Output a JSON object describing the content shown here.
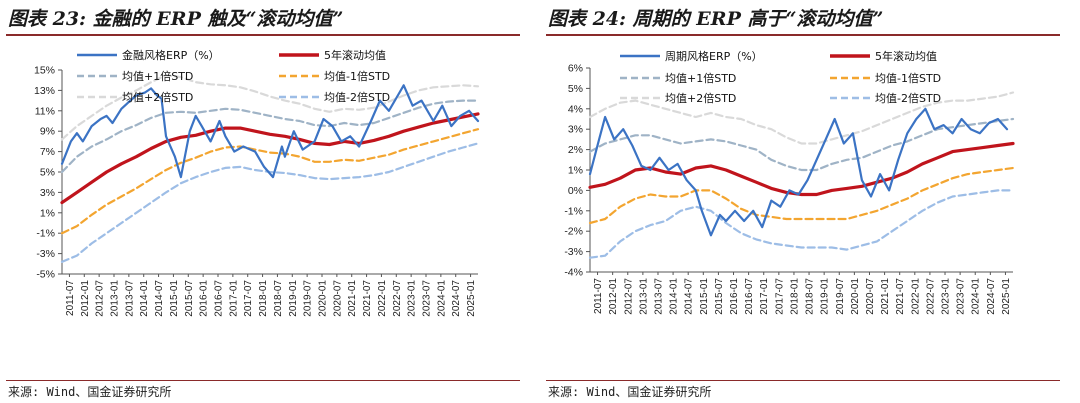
{
  "charts": [
    {
      "title": "图表 23: 金融的 ERP 触及“滚动均值”",
      "source": "来源: Wind、国金证券研究所"
    },
    {
      "title": "图表 24: 周期的 ERP 高于“滚动均值”",
      "source": "来源: Wind、国金证券研究所"
    }
  ],
  "colors": {
    "erp": "#3b73c4",
    "mean": "#c0141c",
    "plus1": "#9fb3c6",
    "minus1": "#f3a530",
    "plus2": "#d9d9d9",
    "minus2": "#9dbde6",
    "title_rule": "#8a2a2a"
  },
  "chart_data": [
    {
      "type": "line",
      "ylim": [
        -5,
        15
      ],
      "yticks": [
        "15%",
        "13%",
        "11%",
        "9%",
        "7%",
        "5%",
        "3%",
        "1%",
        "-1%",
        "-3%",
        "-5%"
      ],
      "x_ticks": [
        "2011-07",
        "2012-01",
        "2012-07",
        "2013-01",
        "2013-07",
        "2014-01",
        "2014-07",
        "2015-01",
        "2015-07",
        "2016-01",
        "2016-07",
        "2017-01",
        "2017-07",
        "2018-01",
        "2018-07",
        "2019-01",
        "2019-07",
        "2020-01",
        "2020-07",
        "2021-01",
        "2021-07",
        "2022-01",
        "2022-07",
        "2023-01",
        "2023-07",
        "2024-01",
        "2024-07",
        "2025-01"
      ],
      "legend": [
        "金融风格ERP（%）",
        "5年滚动均值",
        "均值+1倍STD",
        "均值-1倍STD",
        "均值+2倍STD",
        "均值-2倍STD"
      ],
      "series": [
        {
          "name": "金融风格ERP（%）",
          "key": "erp",
          "x": [
            2011.5,
            2011.8,
            2012.0,
            2012.2,
            2012.5,
            2012.8,
            2013.0,
            2013.2,
            2013.5,
            2013.8,
            2014.0,
            2014.3,
            2014.5,
            2014.7,
            2014.85,
            2015.0,
            2015.3,
            2015.5,
            2015.8,
            2016.0,
            2016.2,
            2016.5,
            2016.8,
            2017.0,
            2017.3,
            2017.6,
            2018.0,
            2018.3,
            2018.6,
            2018.9,
            2019.0,
            2019.3,
            2019.6,
            2020.0,
            2020.3,
            2020.6,
            2020.9,
            2021.2,
            2021.5,
            2021.9,
            2022.2,
            2022.5,
            2022.8,
            2023.0,
            2023.3,
            2023.6,
            2024.0,
            2024.3,
            2024.6,
            2024.9,
            2025.2,
            2025.5
          ],
          "values": [
            5.8,
            8.0,
            8.8,
            8.0,
            9.5,
            10.2,
            10.5,
            9.8,
            11.2,
            12.0,
            12.5,
            12.8,
            13.2,
            12.5,
            12.2,
            8.5,
            6.5,
            4.5,
            9.0,
            10.5,
            9.5,
            8.0,
            10.0,
            8.5,
            7.0,
            7.5,
            7.0,
            5.5,
            4.5,
            7.5,
            6.5,
            9.0,
            7.2,
            8.0,
            10.2,
            9.5,
            8.0,
            8.5,
            7.5,
            10.0,
            12.0,
            11.0,
            12.5,
            13.5,
            11.5,
            12.0,
            10.0,
            11.5,
            9.5,
            10.5,
            11.0,
            10.0
          ]
        },
        {
          "name": "5年滚动均值",
          "key": "mean",
          "x": [
            2011.5,
            2012.0,
            2012.5,
            2013.0,
            2013.5,
            2014.0,
            2014.5,
            2015.0,
            2015.5,
            2016.0,
            2016.5,
            2017.0,
            2017.5,
            2018.0,
            2018.5,
            2019.0,
            2019.5,
            2020.0,
            2020.5,
            2021.0,
            2021.5,
            2022.0,
            2022.5,
            2023.0,
            2023.5,
            2024.0,
            2024.5,
            2025.0,
            2025.5
          ],
          "values": [
            2.0,
            3.0,
            4.0,
            5.0,
            5.8,
            6.5,
            7.3,
            8.0,
            8.4,
            8.6,
            9.0,
            9.3,
            9.3,
            9.0,
            8.7,
            8.5,
            8.2,
            7.8,
            7.7,
            8.0,
            7.8,
            8.1,
            8.5,
            9.0,
            9.4,
            9.8,
            10.1,
            10.4,
            10.7
          ]
        },
        {
          "name": "均值+1倍STD",
          "key": "plus1",
          "x": [
            2011.5,
            2012.0,
            2012.5,
            2013.0,
            2013.5,
            2014.0,
            2014.5,
            2015.0,
            2015.5,
            2016.0,
            2016.5,
            2017.0,
            2017.5,
            2018.0,
            2018.5,
            2019.0,
            2019.5,
            2020.0,
            2020.5,
            2021.0,
            2021.5,
            2022.0,
            2022.5,
            2023.0,
            2023.5,
            2024.0,
            2024.5,
            2025.0,
            2025.5
          ],
          "values": [
            5.0,
            6.5,
            7.5,
            8.2,
            9.0,
            9.6,
            10.3,
            10.8,
            10.9,
            10.8,
            11.0,
            11.2,
            11.1,
            10.8,
            10.5,
            10.2,
            10.0,
            9.6,
            9.5,
            9.8,
            9.6,
            9.8,
            10.3,
            10.8,
            11.3,
            11.7,
            11.9,
            12.0,
            12.0
          ]
        },
        {
          "name": "均值-1倍STD",
          "key": "minus1",
          "x": [
            2011.5,
            2012.0,
            2012.5,
            2013.0,
            2013.5,
            2014.0,
            2014.5,
            2015.0,
            2015.5,
            2016.0,
            2016.5,
            2017.0,
            2017.5,
            2018.0,
            2018.5,
            2019.0,
            2019.5,
            2020.0,
            2020.5,
            2021.0,
            2021.5,
            2022.0,
            2022.5,
            2023.0,
            2023.5,
            2024.0,
            2024.5,
            2025.0,
            2025.5
          ],
          "values": [
            -1.0,
            -0.3,
            0.8,
            1.8,
            2.6,
            3.4,
            4.3,
            5.2,
            5.9,
            6.4,
            7.0,
            7.4,
            7.5,
            7.2,
            6.9,
            6.8,
            6.5,
            6.0,
            6.0,
            6.2,
            6.1,
            6.4,
            6.7,
            7.2,
            7.6,
            8.0,
            8.4,
            8.8,
            9.2
          ]
        },
        {
          "name": "均值+2倍STD",
          "key": "plus2",
          "x": [
            2011.5,
            2012.0,
            2012.5,
            2013.0,
            2013.5,
            2014.0,
            2014.5,
            2015.0,
            2015.5,
            2016.0,
            2016.5,
            2017.0,
            2017.5,
            2018.0,
            2018.5,
            2019.0,
            2019.5,
            2020.0,
            2020.5,
            2021.0,
            2021.5,
            2022.0,
            2022.5,
            2023.0,
            2023.5,
            2024.0,
            2024.5,
            2025.0,
            2025.5
          ],
          "values": [
            8.2,
            9.5,
            10.5,
            11.5,
            12.3,
            13.0,
            13.8,
            14.5,
            14.3,
            13.8,
            13.6,
            13.5,
            13.3,
            12.9,
            12.4,
            12.0,
            11.7,
            11.2,
            10.9,
            11.2,
            11.1,
            11.3,
            11.9,
            12.5,
            13.0,
            13.3,
            13.4,
            13.5,
            13.4
          ]
        },
        {
          "name": "均值-2倍STD",
          "key": "minus2",
          "x": [
            2011.5,
            2012.0,
            2012.5,
            2013.0,
            2013.5,
            2014.0,
            2014.5,
            2015.0,
            2015.5,
            2016.0,
            2016.5,
            2017.0,
            2017.5,
            2018.0,
            2018.5,
            2019.0,
            2019.5,
            2020.0,
            2020.5,
            2021.0,
            2021.5,
            2022.0,
            2022.5,
            2023.0,
            2023.5,
            2024.0,
            2024.5,
            2025.0,
            2025.5
          ],
          "values": [
            -3.8,
            -3.2,
            -2.0,
            -1.0,
            0.0,
            1.0,
            2.0,
            3.0,
            3.9,
            4.5,
            5.0,
            5.4,
            5.5,
            5.2,
            5.0,
            4.9,
            4.7,
            4.4,
            4.3,
            4.4,
            4.5,
            4.7,
            5.0,
            5.5,
            6.0,
            6.5,
            7.0,
            7.4,
            7.8
          ]
        }
      ]
    },
    {
      "type": "line",
      "ylim": [
        -4,
        6
      ],
      "yticks": [
        "6%",
        "5%",
        "4%",
        "3%",
        "2%",
        "1%",
        "0%",
        "-1%",
        "-2%",
        "-3%",
        "-4%"
      ],
      "x_ticks": [
        "2011-07",
        "2012-01",
        "2012-07",
        "2013-01",
        "2013-07",
        "2014-01",
        "2014-07",
        "2015-01",
        "2015-07",
        "2016-01",
        "2016-07",
        "2017-01",
        "2017-07",
        "2018-01",
        "2018-07",
        "2019-01",
        "2019-07",
        "2020-01",
        "2020-07",
        "2021-01",
        "2021-07",
        "2022-01",
        "2022-07",
        "2023-01",
        "2023-07",
        "2024-01",
        "2024-07",
        "2025-01"
      ],
      "legend": [
        "周期风格ERP（%）",
        "5年滚动均值",
        "均值+1倍STD",
        "均值-1倍STD",
        "均值+2倍STD",
        "均值-2倍STD"
      ],
      "series": [
        {
          "name": "周期风格ERP（%）",
          "key": "erp",
          "x": [
            2011.5,
            2011.8,
            2012.0,
            2012.3,
            2012.6,
            2012.9,
            2013.2,
            2013.5,
            2013.8,
            2014.1,
            2014.4,
            2014.7,
            2015.0,
            2015.2,
            2015.5,
            2015.8,
            2016.0,
            2016.3,
            2016.6,
            2016.9,
            2017.2,
            2017.5,
            2017.8,
            2018.1,
            2018.4,
            2018.7,
            2019.0,
            2019.3,
            2019.6,
            2019.9,
            2020.2,
            2020.5,
            2020.8,
            2021.1,
            2021.4,
            2021.7,
            2022.0,
            2022.3,
            2022.6,
            2022.9,
            2023.2,
            2023.5,
            2023.8,
            2024.1,
            2024.4,
            2024.7,
            2025.0,
            2025.3
          ],
          "values": [
            0.8,
            2.5,
            3.6,
            2.5,
            3.0,
            2.2,
            1.2,
            1.0,
            1.6,
            1.0,
            1.3,
            0.5,
            0.0,
            -1.0,
            -2.2,
            -1.2,
            -1.5,
            -1.0,
            -1.5,
            -1.0,
            -1.8,
            -0.5,
            -0.8,
            0.0,
            -0.2,
            0.5,
            1.5,
            2.5,
            3.5,
            2.3,
            2.8,
            0.5,
            -0.3,
            0.8,
            0.0,
            1.5,
            2.8,
            3.5,
            4.0,
            3.0,
            3.2,
            2.8,
            3.5,
            3.0,
            2.8,
            3.3,
            3.5,
            3.0
          ]
        },
        {
          "name": "5年滚动均值",
          "key": "mean",
          "x": [
            2011.5,
            2012.0,
            2012.5,
            2013.0,
            2013.5,
            2014.0,
            2014.5,
            2015.0,
            2015.5,
            2016.0,
            2016.5,
            2017.0,
            2017.5,
            2018.0,
            2018.5,
            2019.0,
            2019.5,
            2020.0,
            2020.5,
            2021.0,
            2021.5,
            2022.0,
            2022.5,
            2023.0,
            2023.5,
            2024.0,
            2024.5,
            2025.0,
            2025.5
          ],
          "values": [
            0.15,
            0.3,
            0.6,
            1.0,
            1.1,
            0.9,
            0.8,
            1.1,
            1.2,
            1.0,
            0.7,
            0.4,
            0.1,
            -0.1,
            -0.2,
            -0.2,
            0.0,
            0.1,
            0.2,
            0.4,
            0.6,
            0.9,
            1.3,
            1.6,
            1.9,
            2.0,
            2.1,
            2.2,
            2.3
          ]
        },
        {
          "name": "均值+1倍STD",
          "key": "plus1",
          "x": [
            2011.5,
            2012.0,
            2012.5,
            2013.0,
            2013.5,
            2014.0,
            2014.5,
            2015.0,
            2015.5,
            2016.0,
            2016.5,
            2017.0,
            2017.5,
            2018.0,
            2018.5,
            2019.0,
            2019.5,
            2020.0,
            2020.5,
            2021.0,
            2021.5,
            2022.0,
            2022.5,
            2023.0,
            2023.5,
            2024.0,
            2024.5,
            2025.0,
            2025.5
          ],
          "values": [
            1.9,
            2.3,
            2.5,
            2.7,
            2.7,
            2.5,
            2.3,
            2.4,
            2.5,
            2.4,
            2.2,
            2.0,
            1.5,
            1.2,
            1.0,
            1.0,
            1.3,
            1.5,
            1.6,
            1.9,
            2.2,
            2.4,
            2.7,
            3.0,
            3.1,
            3.2,
            3.3,
            3.4,
            3.5
          ]
        },
        {
          "name": "均值-1倍STD",
          "key": "minus1",
          "x": [
            2011.5,
            2012.0,
            2012.5,
            2013.0,
            2013.5,
            2014.0,
            2014.5,
            2015.0,
            2015.5,
            2016.0,
            2016.5,
            2017.0,
            2017.5,
            2018.0,
            2018.5,
            2019.0,
            2019.5,
            2020.0,
            2020.5,
            2021.0,
            2021.5,
            2022.0,
            2022.5,
            2023.0,
            2023.5,
            2024.0,
            2024.5,
            2025.0,
            2025.5
          ],
          "values": [
            -1.6,
            -1.4,
            -0.8,
            -0.4,
            -0.2,
            -0.3,
            -0.3,
            0.0,
            0.0,
            -0.4,
            -0.9,
            -1.2,
            -1.3,
            -1.4,
            -1.4,
            -1.4,
            -1.4,
            -1.4,
            -1.2,
            -1.0,
            -0.7,
            -0.4,
            0.0,
            0.3,
            0.6,
            0.8,
            0.9,
            1.0,
            1.1
          ]
        },
        {
          "name": "均值+2倍STD",
          "key": "plus2",
          "x": [
            2011.5,
            2012.0,
            2012.5,
            2013.0,
            2013.5,
            2014.0,
            2014.5,
            2015.0,
            2015.5,
            2016.0,
            2016.5,
            2017.0,
            2017.5,
            2018.0,
            2018.5,
            2019.0,
            2019.5,
            2020.0,
            2020.5,
            2021.0,
            2021.5,
            2022.0,
            2022.5,
            2023.0,
            2023.5,
            2024.0,
            2024.5,
            2025.0,
            2025.5
          ],
          "values": [
            3.6,
            4.0,
            4.3,
            4.4,
            4.2,
            4.0,
            3.8,
            3.6,
            3.8,
            3.6,
            3.5,
            3.2,
            3.0,
            2.6,
            2.3,
            2.3,
            2.5,
            2.7,
            2.9,
            3.2,
            3.5,
            3.8,
            4.1,
            4.3,
            4.4,
            4.4,
            4.5,
            4.6,
            4.8
          ]
        },
        {
          "name": "均值-2倍STD",
          "key": "minus2",
          "x": [
            2011.5,
            2012.0,
            2012.5,
            2013.0,
            2013.5,
            2014.0,
            2014.5,
            2015.0,
            2015.5,
            2016.0,
            2016.5,
            2017.0,
            2017.5,
            2018.0,
            2018.5,
            2019.0,
            2019.5,
            2020.0,
            2020.5,
            2021.0,
            2021.5,
            2022.0,
            2022.5,
            2023.0,
            2023.5,
            2024.0,
            2024.5,
            2025.0,
            2025.5
          ],
          "values": [
            -3.3,
            -3.2,
            -2.5,
            -2.0,
            -1.7,
            -1.5,
            -1.0,
            -0.8,
            -1.0,
            -1.6,
            -2.1,
            -2.4,
            -2.6,
            -2.7,
            -2.8,
            -2.8,
            -2.8,
            -2.9,
            -2.7,
            -2.5,
            -2.0,
            -1.5,
            -1.0,
            -0.6,
            -0.3,
            -0.2,
            -0.1,
            0.0,
            0.0
          ]
        }
      ]
    }
  ]
}
